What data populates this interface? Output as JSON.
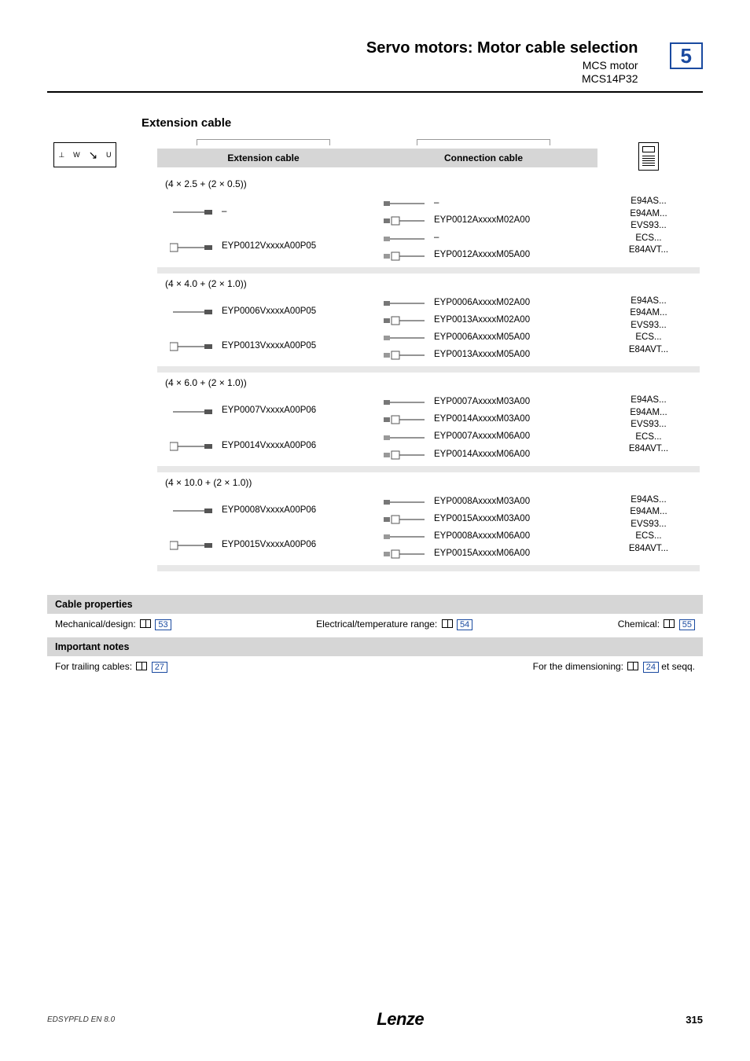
{
  "header": {
    "title": "Servo motors: Motor cable selection",
    "sub1": "MCS motor",
    "sub2": "MCS14P32",
    "chapter": "5",
    "chapter_border_color": "#1a4aa0"
  },
  "section_title": "Extension cable",
  "table": {
    "headers": {
      "ext": "Extension cable",
      "conn": "Connection cable"
    },
    "motor_glyphs": "⊥ W U V",
    "groups": [
      {
        "cross": "(4 × 2.5 + (2 × 0.5))",
        "ext": [
          {
            "glyph": "plain",
            "part": "–"
          },
          {
            "glyph": "shield",
            "part": "EYP0012VxxxxA00P05"
          }
        ],
        "conn": [
          {
            "glyph": "plug-plain",
            "part": "–"
          },
          {
            "glyph": "plug-shield",
            "part": "EYP0012AxxxxM02A00"
          },
          {
            "glyph": "plug-plain2",
            "part": "–"
          },
          {
            "glyph": "plug-shield2",
            "part": "EYP0012AxxxxM05A00"
          }
        ],
        "devices": [
          "E94AS...",
          "E94AM...",
          "EVS93...",
          "ECS...",
          "E84AVT..."
        ]
      },
      {
        "cross": "(4 × 4.0 + (2 × 1.0))",
        "ext": [
          {
            "glyph": "plain",
            "part": "EYP0006VxxxxA00P05"
          },
          {
            "glyph": "shield",
            "part": "EYP0013VxxxxA00P05"
          }
        ],
        "conn": [
          {
            "glyph": "plug-plain",
            "part": "EYP0006AxxxxM02A00"
          },
          {
            "glyph": "plug-shield",
            "part": "EYP0013AxxxxM02A00"
          },
          {
            "glyph": "plug-plain2",
            "part": "EYP0006AxxxxM05A00"
          },
          {
            "glyph": "plug-shield2",
            "part": "EYP0013AxxxxM05A00"
          }
        ],
        "devices": [
          "E94AS...",
          "E94AM...",
          "EVS93...",
          "ECS...",
          "E84AVT..."
        ]
      },
      {
        "cross": "(4 × 6.0 + (2 × 1.0))",
        "ext": [
          {
            "glyph": "plain",
            "part": "EYP0007VxxxxA00P06"
          },
          {
            "glyph": "shield",
            "part": "EYP0014VxxxxA00P06"
          }
        ],
        "conn": [
          {
            "glyph": "plug-plain",
            "part": "EYP0007AxxxxM03A00"
          },
          {
            "glyph": "plug-shield",
            "part": "EYP0014AxxxxM03A00"
          },
          {
            "glyph": "plug-plain2",
            "part": "EYP0007AxxxxM06A00"
          },
          {
            "glyph": "plug-shield2",
            "part": "EYP0014AxxxxM06A00"
          }
        ],
        "devices": [
          "E94AS...",
          "E94AM...",
          "EVS93...",
          "ECS...",
          "E84AVT..."
        ]
      },
      {
        "cross": "(4 × 10.0 + (2 × 1.0))",
        "ext": [
          {
            "glyph": "plain",
            "part": "EYP0008VxxxxA00P06"
          },
          {
            "glyph": "shield",
            "part": "EYP0015VxxxxA00P06"
          }
        ],
        "conn": [
          {
            "glyph": "plug-plain",
            "part": "EYP0008AxxxxM03A00"
          },
          {
            "glyph": "plug-shield",
            "part": "EYP0015AxxxxM03A00"
          },
          {
            "glyph": "plug-plain2",
            "part": "EYP0008AxxxxM06A00"
          },
          {
            "glyph": "plug-shield2",
            "part": "EYP0015AxxxxM06A00"
          }
        ],
        "devices": [
          "E94AS...",
          "E94AM...",
          "EVS93...",
          "ECS...",
          "E84AVT..."
        ]
      }
    ]
  },
  "props": {
    "title": "Cable properties",
    "mech_label": "Mechanical/design:",
    "mech_ref": "53",
    "elec_label": "Electrical/temperature range:",
    "elec_ref": "54",
    "chem_label": "Chemical:",
    "chem_ref": "55"
  },
  "notes": {
    "title": "Important notes",
    "trail_label": "For trailing cables:",
    "trail_ref": "27",
    "dim_label": "For the dimensioning:",
    "dim_ref": "24",
    "dim_suffix": " et seqq."
  },
  "footer": {
    "left": "EDSYPFLD   EN   8.0",
    "center": "Lenze",
    "page": "315"
  },
  "colors": {
    "accent": "#1a4aa0",
    "header_bg": "#d6d6d6",
    "sep_bg": "#e8e8e8"
  }
}
